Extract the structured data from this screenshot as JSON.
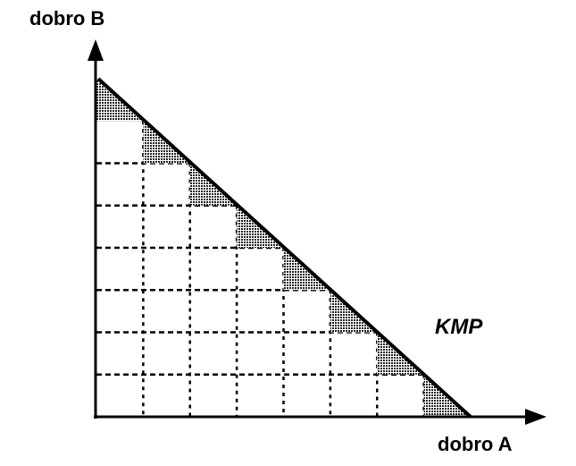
{
  "diagram": {
    "y_axis_label": "dobro  B",
    "x_axis_label": "dobro  A",
    "curve_label": "KMP",
    "grid_steps": 8,
    "line_color": "#000000"
  }
}
